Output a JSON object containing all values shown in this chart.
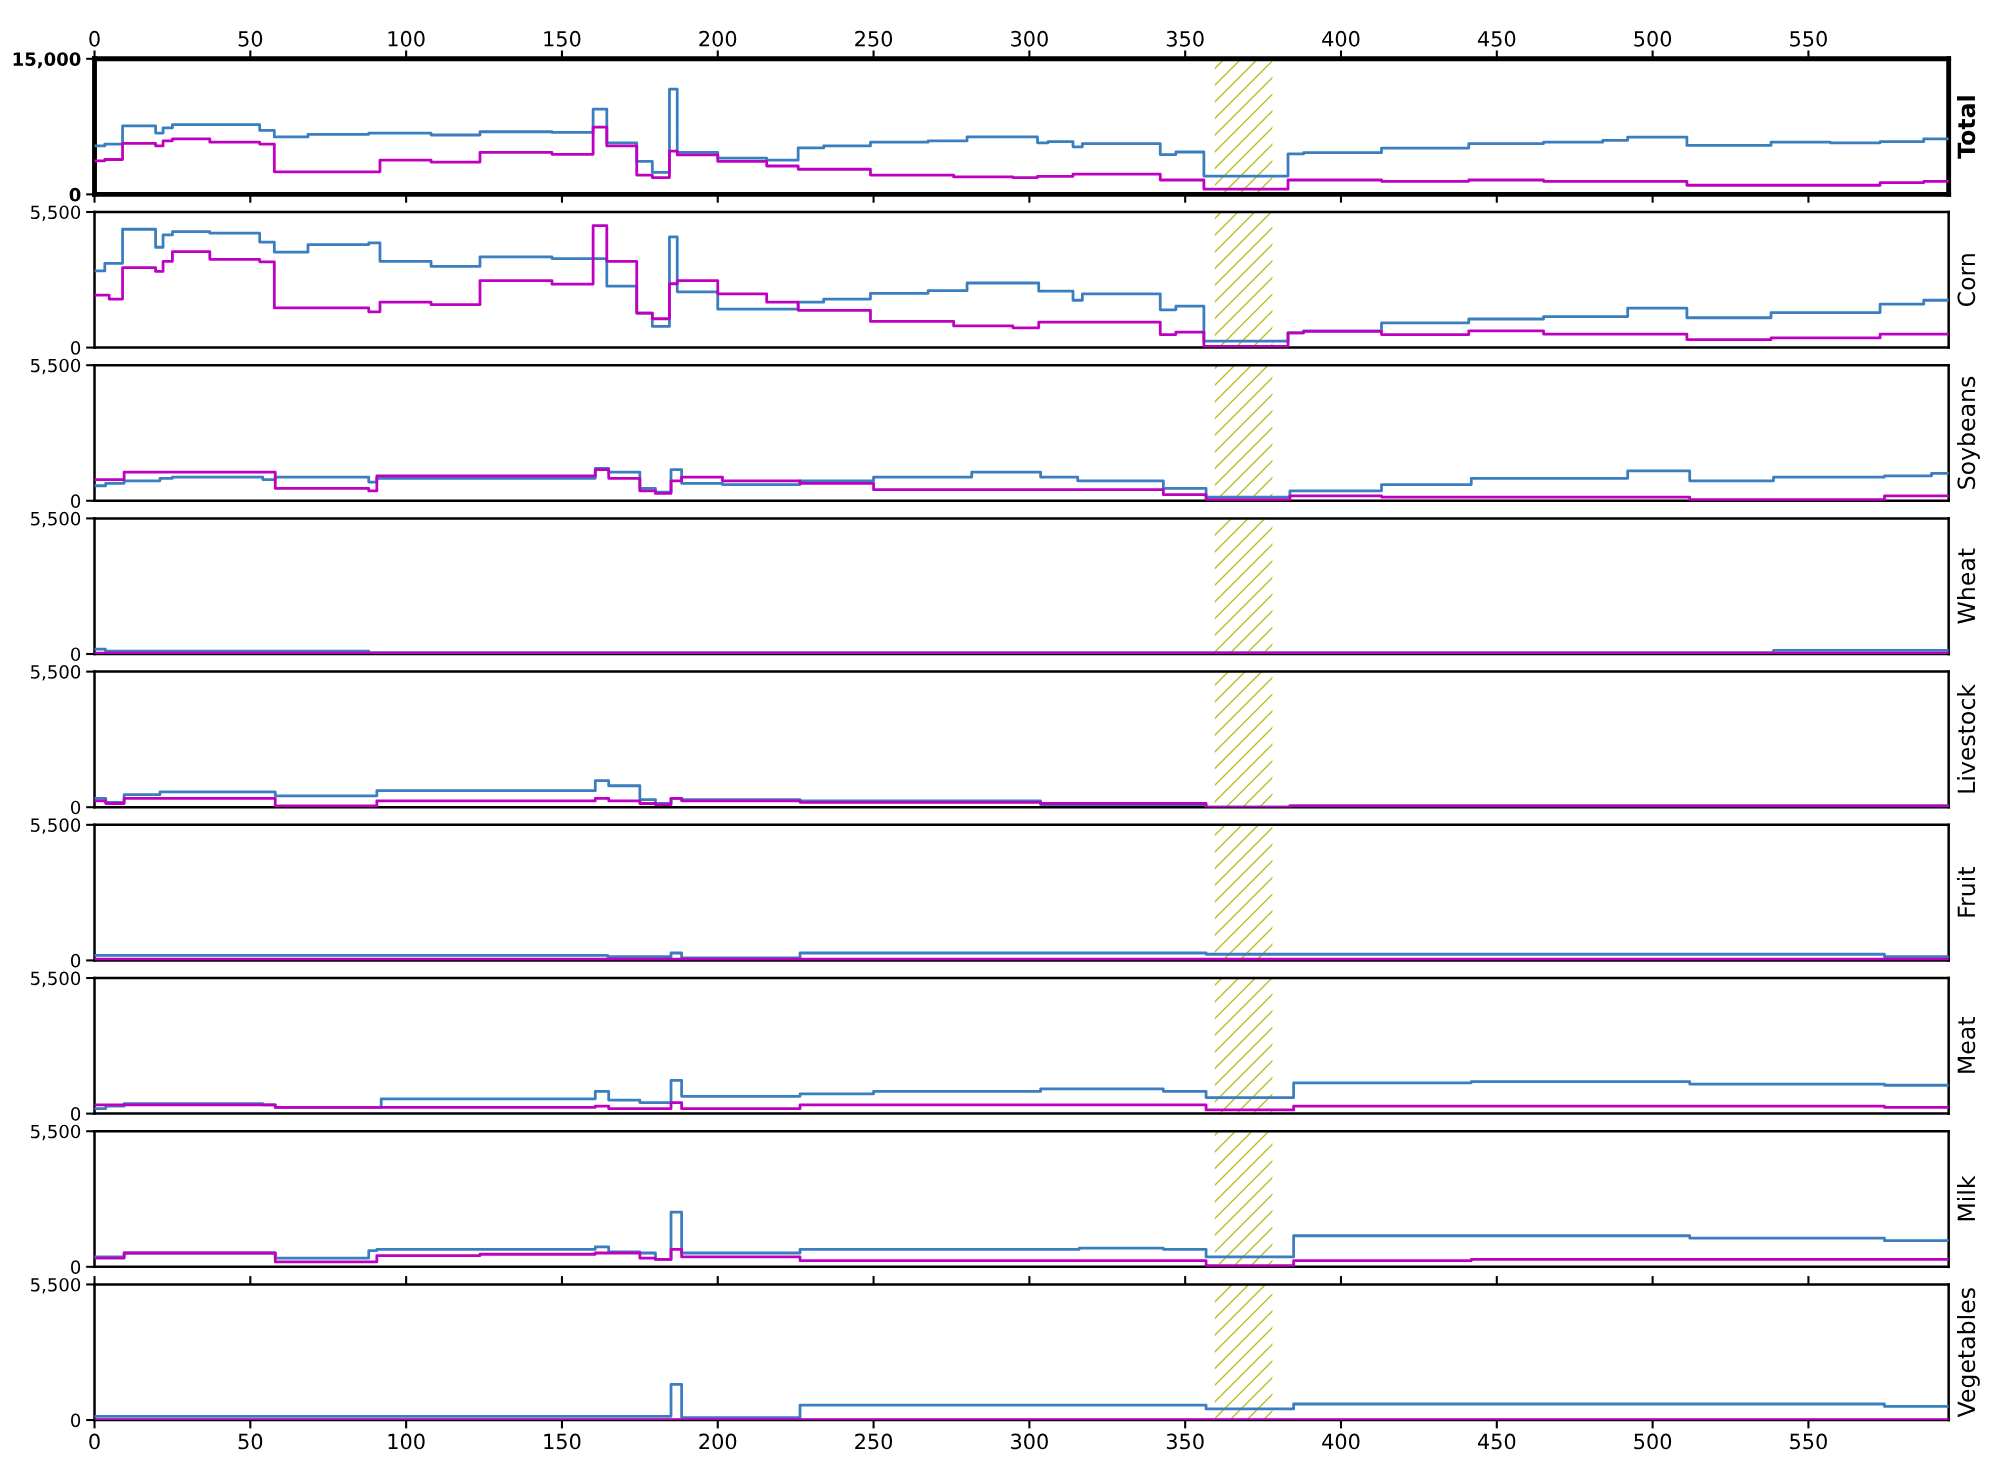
{
  "chart_data": [
    {
      "type": "step",
      "ylabel": "Total",
      "xlim": [
        0,
        595
      ],
      "x2lim": [
        0,
        595
      ],
      "x2ticks": [
        0,
        50,
        100,
        150,
        200,
        250,
        300,
        350,
        400,
        450,
        500,
        550
      ],
      "ylim": [
        0,
        15000
      ],
      "yticks": [
        {
          "value": 0,
          "label": "0"
        },
        {
          "value": 15000,
          "label": "15,000"
        }
      ],
      "tick_labels": "y",
      "bands": [
        {
          "axis": "x",
          "from": 359.5,
          "to": 378,
          "color": "#bcbd22"
        }
      ],
      "series": [
        {
          "color": "#3a7ebf",
          "x": [
            0,
            3.3,
            9,
            19.6,
            22,
            25,
            37,
            53,
            57.7,
            68.5,
            88,
            108,
            123.7,
            146.8,
            160,
            164.4,
            174,
            179,
            184.5,
            187,
            200,
            215.7,
            225.8,
            234,
            249,
            267.5,
            280,
            302.6,
            306,
            314,
            317,
            342,
            347,
            356,
            383,
            388,
            413,
            441,
            465,
            484,
            492,
            511,
            538,
            557,
            573,
            587,
            595
          ],
          "values": [
            5360,
            5570,
            7570,
            6780,
            7350,
            7710,
            7710,
            7070,
            6350,
            6640,
            6780,
            6570,
            6930,
            6850,
            9420,
            5710,
            3640,
            2430,
            11640,
            4640,
            4000,
            3780,
            5140,
            5360,
            5780,
            5930,
            6350,
            5710,
            5840,
            5260,
            5620,
            4400,
            4690,
            2020,
            4470,
            4610,
            5120,
            5620,
            5770,
            5980,
            6340,
            5410,
            5770,
            5700,
            5840,
            6130,
            6130
          ]
        },
        {
          "color": "#c000c0",
          "x": [
            0,
            3.3,
            9,
            19.6,
            22,
            25,
            37,
            53,
            57.7,
            91.6,
            108,
            123.7,
            146.8,
            160,
            164.4,
            174,
            179,
            184.5,
            187,
            200,
            215.7,
            225.8,
            249,
            275.7,
            294.7,
            302.6,
            314,
            342,
            356,
            383,
            413,
            441,
            465,
            511,
            573,
            587,
            595
          ],
          "values": [
            3710,
            3860,
            5640,
            5360,
            5930,
            6140,
            5780,
            5570,
            2500,
            3780,
            3570,
            4640,
            4430,
            7430,
            5360,
            2140,
            1860,
            4780,
            4360,
            3640,
            3140,
            2780,
            2140,
            1930,
            1860,
            2000,
            2240,
            1590,
            580,
            1590,
            1440,
            1590,
            1440,
            1010,
            1300,
            1440,
            1440
          ]
        }
      ]
    },
    {
      "type": "step",
      "ylabel": "Corn",
      "xlim": [
        0,
        595
      ],
      "ylim": [
        0,
        5500
      ],
      "yticks": [
        {
          "value": 0,
          "label": "0"
        },
        {
          "value": 5500,
          "label": "5,500"
        }
      ],
      "tick_labels": "y",
      "bands": [
        {
          "axis": "x",
          "from": 359.5,
          "to": 378,
          "color": "#bcbd22"
        }
      ],
      "series": [
        {
          "color": "#3a7ebf",
          "x": [
            0,
            3.3,
            9,
            19.6,
            22,
            25,
            37,
            53,
            57.7,
            68.5,
            88,
            91.6,
            108,
            123.7,
            146.8,
            164.4,
            174,
            179,
            184.5,
            187,
            200,
            225.8,
            234,
            249,
            267.5,
            280,
            303,
            314,
            317,
            342,
            347,
            356,
            383,
            388,
            413,
            441,
            465,
            492,
            511,
            538,
            573,
            587,
            595
          ],
          "values": [
            3110,
            3420,
            4800,
            4070,
            4570,
            4700,
            4640,
            4280,
            3870,
            4180,
            4250,
            3500,
            3290,
            3680,
            3610,
            2490,
            1400,
            860,
            4490,
            2260,
            1560,
            1840,
            1970,
            2200,
            2310,
            2620,
            2290,
            1920,
            2180,
            1530,
            1680,
            260,
            600,
            680,
            1000,
            1160,
            1260,
            1600,
            1210,
            1420,
            1760,
            1920,
            1920
          ]
        },
        {
          "color": "#c000c0",
          "x": [
            0,
            4.7,
            9,
            19.6,
            22,
            25,
            37,
            53,
            57.7,
            88,
            91.6,
            108,
            123.7,
            146.8,
            160,
            164.4,
            174,
            179,
            184.5,
            187,
            200,
            215.7,
            225.8,
            249,
            275.7,
            294.7,
            303,
            342,
            347,
            356,
            383,
            388,
            413,
            441,
            465,
            511,
            538,
            573,
            595
          ],
          "values": [
            2130,
            1970,
            3240,
            3090,
            3500,
            3890,
            3580,
            3480,
            1610,
            1450,
            1840,
            1740,
            2720,
            2570,
            4950,
            3500,
            1400,
            1170,
            2590,
            2720,
            2180,
            1840,
            1510,
            1060,
            880,
            800,
            1030,
            530,
            630,
            50,
            600,
            660,
            530,
            680,
            550,
            320,
            390,
            550,
            550
          ]
        }
      ]
    },
    {
      "type": "step",
      "ylabel": "Soybeans",
      "xlim": [
        0,
        595
      ],
      "ylim": [
        0,
        5500
      ],
      "yticks": [
        {
          "value": 0,
          "label": "0"
        },
        {
          "value": 5500,
          "label": "5,500"
        }
      ],
      "tick_labels": "y",
      "bands": [
        {
          "axis": "x",
          "from": 359.5,
          "to": 378,
          "color": "#bcbd22"
        }
      ],
      "series": [
        {
          "color": "#3a7ebf",
          "x": [
            0,
            3.6,
            9.5,
            21,
            25,
            54,
            58,
            88,
            90.6,
            160.7,
            165,
            175,
            180,
            185,
            188.4,
            201.5,
            226.4,
            250,
            281.5,
            303.6,
            315.5,
            343,
            356.7,
            383.6,
            413,
            441.8,
            492,
            511.9,
            538.8,
            574.4,
            589.5,
            595
          ],
          "values": [
            610,
            710,
            810,
            910,
            960,
            860,
            960,
            760,
            910,
            1310,
            1160,
            500,
            350,
            1260,
            710,
            660,
            810,
            960,
            1160,
            960,
            810,
            500,
            150,
            400,
            660,
            910,
            1210,
            810,
            960,
            1010,
            1110,
            1110
          ]
        },
        {
          "color": "#c000c0",
          "x": [
            0,
            9.5,
            58,
            88,
            90.6,
            160.7,
            165,
            175,
            180,
            185,
            188.4,
            201.5,
            226.4,
            250,
            343,
            356.7,
            383.6,
            413,
            511.9,
            574.4,
            595
          ],
          "values": [
            860,
            1160,
            500,
            400,
            1010,
            1260,
            910,
            400,
            300,
            810,
            960,
            810,
            710,
            450,
            250,
            50,
            200,
            150,
            50,
            200,
            200
          ]
        }
      ]
    },
    {
      "type": "step",
      "ylabel": "Wheat",
      "xlim": [
        0,
        595
      ],
      "ylim": [
        0,
        5500
      ],
      "yticks": [
        {
          "value": 0,
          "label": "0"
        },
        {
          "value": 5500,
          "label": "5,500"
        }
      ],
      "tick_labels": "y",
      "bands": [
        {
          "axis": "x",
          "from": 359.5,
          "to": 378,
          "color": "#bcbd22"
        }
      ],
      "series": [
        {
          "color": "#3a7ebf",
          "x": [
            0,
            3.5,
            88,
            383,
            538.8,
            595
          ],
          "values": [
            200,
            120,
            50,
            60,
            150,
            150
          ]
        },
        {
          "color": "#c000c0",
          "x": [
            0,
            595
          ],
          "values": [
            30,
            30
          ]
        }
      ]
    },
    {
      "type": "step",
      "ylabel": "Livestock",
      "xlim": [
        0,
        595
      ],
      "ylim": [
        0,
        5500
      ],
      "yticks": [
        {
          "value": 0,
          "label": "0"
        },
        {
          "value": 5500,
          "label": "5,500"
        }
      ],
      "tick_labels": "y",
      "bands": [
        {
          "axis": "x",
          "from": 359.5,
          "to": 378,
          "color": "#bcbd22"
        }
      ],
      "series": [
        {
          "color": "#3a7ebf",
          "x": [
            0,
            3.6,
            9.5,
            21,
            58,
            90.6,
            160.7,
            165,
            175,
            180,
            185,
            188.4,
            226.4,
            303.6,
            356.7,
            383.6,
            595
          ],
          "values": [
            360,
            200,
            510,
            620,
            460,
            670,
            1080,
            870,
            310,
            150,
            360,
            310,
            260,
            100,
            0,
            50,
            50
          ]
        },
        {
          "color": "#c000c0",
          "x": [
            0,
            3.6,
            9.5,
            58,
            90.6,
            160.7,
            165,
            175,
            180,
            185,
            188.4,
            226.4,
            303.6,
            356.7,
            383.6,
            595
          ],
          "values": [
            260,
            150,
            360,
            50,
            260,
            360,
            260,
            150,
            100,
            360,
            260,
            200,
            150,
            0,
            50,
            50
          ]
        }
      ]
    },
    {
      "type": "step",
      "ylabel": "Fruit",
      "xlim": [
        0,
        595
      ],
      "ylim": [
        0,
        5500
      ],
      "yticks": [
        {
          "value": 0,
          "label": "0"
        },
        {
          "value": 5500,
          "label": "5,500"
        }
      ],
      "tick_labels": "y",
      "bands": [
        {
          "axis": "x",
          "from": 359.5,
          "to": 378,
          "color": "#bcbd22"
        }
      ],
      "series": [
        {
          "color": "#3a7ebf",
          "x": [
            0,
            164.7,
            185,
            188.4,
            226.4,
            356.7,
            574.4,
            595
          ],
          "values": [
            200,
            150,
            300,
            100,
            300,
            250,
            150,
            150
          ]
        },
        {
          "color": "#c000c0",
          "x": [
            0,
            595
          ],
          "values": [
            50,
            50
          ]
        }
      ]
    },
    {
      "type": "step",
      "ylabel": "Meat",
      "xlim": [
        0,
        595
      ],
      "ylim": [
        0,
        5500
      ],
      "yticks": [
        {
          "value": 0,
          "label": "0"
        },
        {
          "value": 5500,
          "label": "5,500"
        }
      ],
      "tick_labels": "y",
      "bands": [
        {
          "axis": "x",
          "from": 359.5,
          "to": 378,
          "color": "#bcbd22"
        }
      ],
      "series": [
        {
          "color": "#3a7ebf",
          "x": [
            0,
            3.6,
            9.5,
            54,
            58,
            92,
            160.7,
            165,
            175,
            185,
            188.4,
            226.4,
            250,
            303.6,
            343,
            356.7,
            384.8,
            441.8,
            511.9,
            574.4,
            595
          ],
          "values": [
            200,
            300,
            400,
            350,
            250,
            600,
            900,
            550,
            450,
            1350,
            700,
            800,
            900,
            1000,
            900,
            650,
            1250,
            1300,
            1200,
            1150,
            1150
          ]
        },
        {
          "color": "#c000c0",
          "x": [
            0,
            58,
            160.7,
            165,
            185,
            188.4,
            226.4,
            356.7,
            384.8,
            574.4,
            595
          ],
          "values": [
            350,
            250,
            300,
            200,
            450,
            200,
            350,
            150,
            300,
            250,
            250
          ]
        }
      ]
    },
    {
      "type": "step",
      "ylabel": "Milk",
      "xlim": [
        0,
        595
      ],
      "ylim": [
        0,
        5500
      ],
      "yticks": [
        {
          "value": 0,
          "label": "0"
        },
        {
          "value": 5500,
          "label": "5,500"
        }
      ],
      "tick_labels": "y",
      "bands": [
        {
          "axis": "x",
          "from": 359.5,
          "to": 378,
          "color": "#bcbd22"
        }
      ],
      "series": [
        {
          "color": "#3a7ebf",
          "x": [
            0,
            9.5,
            58,
            88,
            90.6,
            160.7,
            165,
            175,
            180,
            185,
            188.4,
            226.4,
            316,
            343,
            356.7,
            384.8,
            511.9,
            574.4,
            595
          ],
          "values": [
            400,
            560,
            350,
            660,
            710,
            810,
            610,
            560,
            300,
            2220,
            560,
            710,
            760,
            710,
            400,
            1260,
            1160,
            1060,
            1060
          ]
        },
        {
          "color": "#c000c0",
          "x": [
            0,
            9.5,
            58,
            90.6,
            123.7,
            160.7,
            175,
            180,
            185,
            188.4,
            226.4,
            356.7,
            384.8,
            441.8,
            595
          ],
          "values": [
            350,
            560,
            200,
            450,
            510,
            560,
            350,
            300,
            710,
            400,
            250,
            50,
            250,
            300,
            300
          ]
        }
      ]
    },
    {
      "type": "step",
      "ylabel": "Vegetables",
      "xlim": [
        0,
        595
      ],
      "xticks": [
        0,
        50,
        100,
        150,
        200,
        250,
        300,
        350,
        400,
        450,
        500,
        550
      ],
      "ylim": [
        0,
        5500
      ],
      "yticks": [
        {
          "value": 0,
          "label": "0"
        },
        {
          "value": 5500,
          "label": "5,500"
        }
      ],
      "bands": [
        {
          "axis": "x",
          "from": 359.5,
          "to": 378,
          "color": "#bcbd22"
        }
      ],
      "series": [
        {
          "color": "#3a7ebf",
          "x": [
            0,
            185,
            188.4,
            226.4,
            356.7,
            384.8,
            574.4,
            595
          ],
          "values": [
            150,
            1450,
            100,
            600,
            450,
            650,
            550,
            550
          ]
        },
        {
          "color": "#c000c0",
          "x": [
            0,
            595
          ],
          "values": [
            20,
            20
          ]
        }
      ]
    }
  ]
}
